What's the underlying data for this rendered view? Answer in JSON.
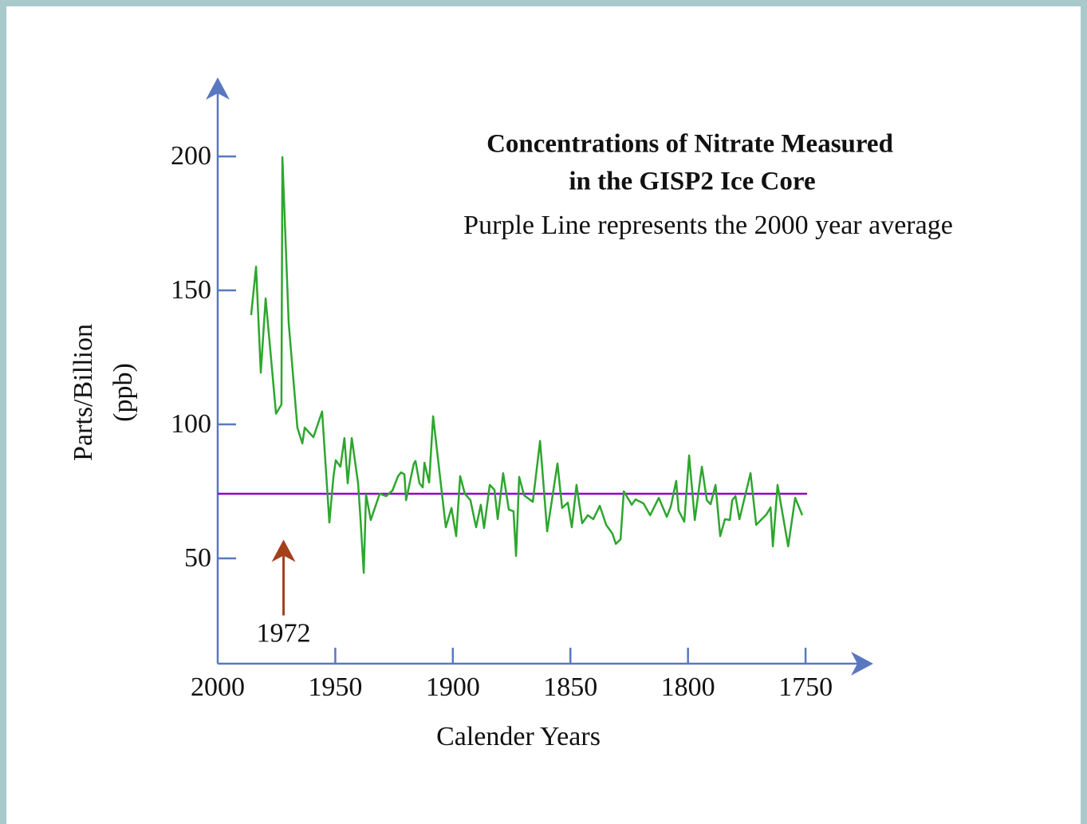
{
  "chart_data": {
    "type": "line",
    "title": [
      "Concentrations of Nitrate Measured",
      "in the GISP2 Ice Core"
    ],
    "subtitle": "Purple Line represents the 2000 year average",
    "ylabel": [
      "Parts/Billion",
      "(ppb)"
    ],
    "xlabel": "Calender Years",
    "x": [
      1985.8,
      1983.7,
      1981.7,
      1979.6,
      1975.2,
      1972.9,
      1972.5,
      1969.8,
      1966.1,
      1964,
      1963,
      1959.3,
      1955.6,
      1952.5,
      1950.8,
      1949.8,
      1947.8,
      1946.1,
      1944.7,
      1943,
      1940.3,
      1939.3,
      1937.9,
      1936.9,
      1934.9,
      1931.1,
      1928.4,
      1925.7,
      1923.3,
      1922,
      1920.6,
      1919.9,
      1916.6,
      1915.9,
      1914.2,
      1912.8,
      1912.1,
      1910.1,
      1908.4,
      1903,
      1900.6,
      1898.6,
      1896.9,
      1894.9,
      1892.5,
      1890.1,
      1888.1,
      1886.7,
      1884.3,
      1882.3,
      1880.9,
      1878.6,
      1876.2,
      1874.2,
      1873.1,
      1871.8,
      1869.7,
      1866,
      1862.9,
      1859.9,
      1855.5,
      1853.5,
      1851.1,
      1849.4,
      1847.4,
      1845,
      1842.6,
      1840.3,
      1837.5,
      1834.8,
      1832.1,
      1830.7,
      1828.7,
      1827.3,
      1823.9,
      1822.3,
      1818.9,
      1816.1,
      1812.4,
      1809,
      1807.3,
      1805,
      1804,
      1801.6,
      1799.5,
      1797.1,
      1794.1,
      1792,
      1790.4,
      1788.3,
      1786.3,
      1784.3,
      1782.2,
      1781.2,
      1779.8,
      1778.1,
      1773.4,
      1771,
      1766.6,
      1764.9,
      1763.9,
      1761.9,
      1757.4,
      1754.4,
      1751.4
    ],
    "series": [
      {
        "color": "#2ea62e",
        "values": [
          140.8,
          158.9,
          119.3,
          147,
          104,
          107.4,
          199.7,
          137.8,
          98.8,
          92.9,
          98.8,
          95.2,
          104.8,
          63.4,
          80.4,
          86.6,
          84.2,
          94.9,
          78,
          94.9,
          78,
          64.9,
          44.6,
          73.8,
          64.3,
          74.1,
          73.2,
          75.3,
          80.7,
          82.1,
          81.3,
          71.7,
          85.4,
          86.3,
          78,
          76.5,
          85.7,
          78.3,
          103,
          61.6,
          68.8,
          58.3,
          80.7,
          74.1,
          71.7,
          61.6,
          70,
          61.3,
          77.4,
          75.6,
          64.6,
          81.8,
          68.2,
          67.6,
          50.9,
          80.4,
          73.5,
          71.1,
          93.8,
          60.1,
          85.4,
          68.8,
          70.8,
          61.6,
          77.4,
          63.1,
          66.1,
          64.6,
          69.6,
          62.5,
          59.2,
          55.4,
          57.1,
          75,
          70,
          72,
          70.5,
          66.1,
          72.6,
          65.5,
          69.3,
          78.9,
          67.9,
          63.7,
          88.4,
          64.3,
          84.2,
          71.7,
          70.2,
          77.4,
          58.3,
          64.6,
          64.3,
          71.7,
          73.2,
          64.6,
          81.8,
          62.5,
          66.4,
          69,
          54.5,
          77.4,
          54.5,
          72.6,
          66.1
        ]
      }
    ],
    "average": {
      "value": 74.1,
      "color": "#8a00d0"
    },
    "annotation": {
      "text": "1972",
      "x": 1972,
      "y": 57,
      "color": "#a3401c"
    },
    "xlim": [
      2000,
      1721.2
    ],
    "xticks": [
      2000,
      1950,
      1900,
      1850,
      1800,
      1750
    ],
    "ylim": [
      10.7,
      229.5
    ],
    "yticks": [
      50,
      100,
      150,
      200
    ],
    "axis_color": "#5a78c0"
  }
}
